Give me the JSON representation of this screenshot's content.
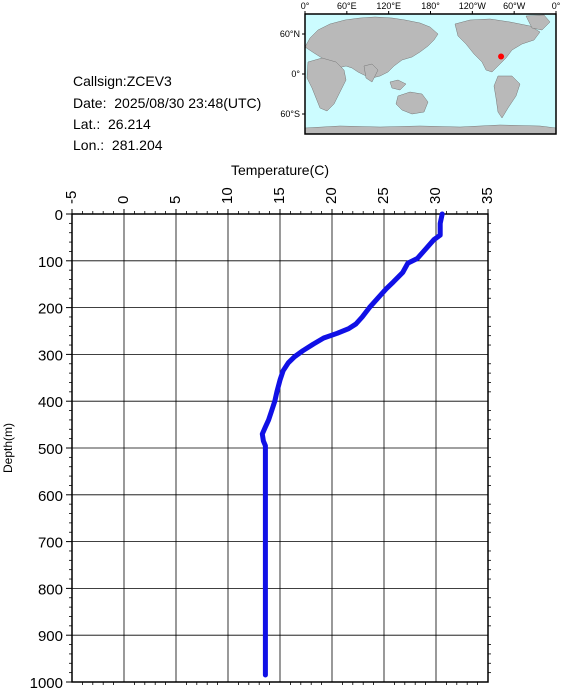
{
  "info": {
    "callsign": "Callsign:ZCEV3",
    "date": "Date:  2025/08/30 23:48(UTC)",
    "lat": "Lat.:  26.214",
    "lon": "Lon.:  281.204"
  },
  "map": {
    "lon_labels": [
      "0°",
      "60°E",
      "120°E",
      "180°",
      "120°W",
      "60°W",
      "0°"
    ],
    "lat_labels": [
      "60°N",
      "0°",
      "60°S"
    ],
    "ocean_color": "#ccfcff",
    "land_color": "#b9b9b9",
    "marker_color": "#ff0000",
    "marker_lon": 281.204,
    "marker_lat": 26.214
  },
  "chart_data": {
    "type": "line",
    "title": "",
    "xlabel": "Temperature(C)",
    "ylabel": "Depth(m)",
    "xlim": [
      -5,
      35
    ],
    "ylim": [
      0,
      1000
    ],
    "y_inverted": true,
    "x_axis_position": "top",
    "x_ticks": [
      -5,
      0,
      5,
      10,
      15,
      20,
      25,
      30,
      35
    ],
    "y_ticks": [
      0,
      100,
      200,
      300,
      400,
      500,
      600,
      700,
      800,
      900,
      1000
    ],
    "grid": true,
    "series": [
      {
        "color": "#1010e6",
        "points": [
          {
            "x": 30.6,
            "y": 0
          },
          {
            "x": 30.4,
            "y": 20
          },
          {
            "x": 30.4,
            "y": 45
          },
          {
            "x": 29.8,
            "y": 55
          },
          {
            "x": 29.0,
            "y": 75
          },
          {
            "x": 28.2,
            "y": 95
          },
          {
            "x": 27.3,
            "y": 105
          },
          {
            "x": 26.8,
            "y": 125
          },
          {
            "x": 25.9,
            "y": 145
          },
          {
            "x": 25.2,
            "y": 160
          },
          {
            "x": 24.4,
            "y": 180
          },
          {
            "x": 23.6,
            "y": 200
          },
          {
            "x": 22.9,
            "y": 220
          },
          {
            "x": 22.3,
            "y": 235
          },
          {
            "x": 21.6,
            "y": 245
          },
          {
            "x": 20.5,
            "y": 255
          },
          {
            "x": 19.2,
            "y": 265
          },
          {
            "x": 18.2,
            "y": 278
          },
          {
            "x": 17.2,
            "y": 292
          },
          {
            "x": 16.4,
            "y": 305
          },
          {
            "x": 15.8,
            "y": 318
          },
          {
            "x": 15.3,
            "y": 335
          },
          {
            "x": 15.0,
            "y": 355
          },
          {
            "x": 14.7,
            "y": 380
          },
          {
            "x": 14.5,
            "y": 400
          },
          {
            "x": 14.2,
            "y": 420
          },
          {
            "x": 13.9,
            "y": 440
          },
          {
            "x": 13.6,
            "y": 455
          },
          {
            "x": 13.3,
            "y": 470
          },
          {
            "x": 13.4,
            "y": 485
          },
          {
            "x": 13.6,
            "y": 495
          },
          {
            "x": 13.6,
            "y": 600
          },
          {
            "x": 13.6,
            "y": 800
          },
          {
            "x": 13.6,
            "y": 985
          }
        ]
      }
    ]
  }
}
